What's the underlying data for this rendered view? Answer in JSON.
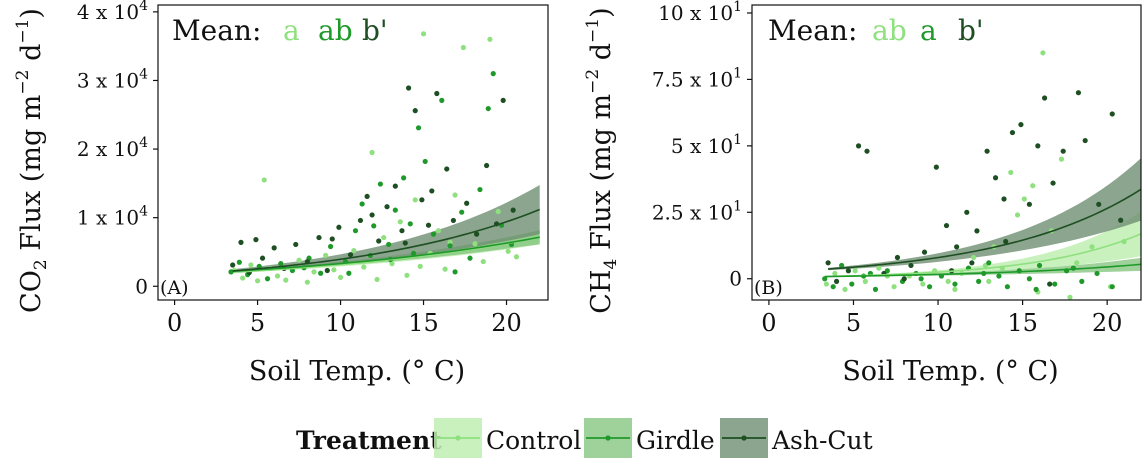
{
  "colors": {
    "control": "#8fe07f",
    "girdle": "#1f9a2a",
    "ashcut": "#1e4f23",
    "control_band": "#bfeeb3",
    "girdle_band": "#7fc27a",
    "ashcut_band": "#6f8f72"
  },
  "legend": {
    "title": "Treatment",
    "items": [
      "Control",
      "Girdle",
      "Ash-Cut"
    ]
  },
  "chart_data": [
    {
      "type": "scatter",
      "panel_tag": "(A)",
      "xlabel": "Soil Temp. (° C)",
      "ylabel_parts": [
        "CO",
        "2",
        " Flux  (mg  m",
        "−2",
        "  d",
        "−1",
        ")"
      ],
      "xlim": [
        -1,
        22.5
      ],
      "ylim": [
        -2000,
        41000
      ],
      "xticks": [
        0,
        5,
        10,
        15,
        20
      ],
      "yticks": [
        {
          "value": 0,
          "label": "0"
        },
        {
          "value": 10000,
          "label": "1 x 10",
          "exp": "4"
        },
        {
          "value": 20000,
          "label": "2 x 10",
          "exp": "4"
        },
        {
          "value": 30000,
          "label": "3 x 10",
          "exp": "4"
        },
        {
          "value": 40000,
          "label": "4 x 10",
          "exp": "4"
        }
      ],
      "mean_text": {
        "label": "Mean:",
        "letters": [
          "a",
          "ab",
          "b'"
        ]
      },
      "fits": [
        {
          "name": "Control",
          "a": 1600,
          "b": 0.068,
          "band": 0.15
        },
        {
          "name": "Girdle",
          "a": 1750,
          "b": 0.064,
          "band": 0.14
        },
        {
          "name": "Ash-Cut",
          "a": 1650,
          "b": 0.087,
          "band": 0.32
        }
      ],
      "series": [
        {
          "name": "Control",
          "points": [
            [
              3.6,
              2300
            ],
            [
              4.1,
              1200
            ],
            [
              4.6,
              3100
            ],
            [
              5.0,
              800
            ],
            [
              5.4,
              15500
            ],
            [
              5.8,
              2600
            ],
            [
              6.2,
              1500
            ],
            [
              7.5,
              3800
            ],
            [
              8.4,
              2100
            ],
            [
              9.1,
              4500
            ],
            [
              10.0,
              1300
            ],
            [
              10.8,
              5200
            ],
            [
              11.4,
              2800
            ],
            [
              11.9,
              19500
            ],
            [
              12.6,
              7100
            ],
            [
              13.1,
              3300
            ],
            [
              13.6,
              9400
            ],
            [
              14.0,
              1600
            ],
            [
              14.5,
              12600
            ],
            [
              15.0,
              36800
            ],
            [
              15.4,
              4800
            ],
            [
              15.9,
              8100
            ],
            [
              16.3,
              2500
            ],
            [
              16.9,
              13300
            ],
            [
              17.4,
              34800
            ],
            [
              18.1,
              6200
            ],
            [
              18.6,
              3600
            ],
            [
              19.0,
              36000
            ],
            [
              19.5,
              10900
            ],
            [
              20.1,
              5100
            ],
            [
              20.6,
              4300
            ],
            [
              12.2,
              1000
            ],
            [
              8.0,
              600
            ],
            [
              6.7,
              900
            ],
            [
              14.8,
              2900
            ],
            [
              9.6,
              2400
            ],
            [
              16.6,
              6400
            ]
          ]
        },
        {
          "name": "Girdle",
          "points": [
            [
              3.4,
              2100
            ],
            [
              3.9,
              3500
            ],
            [
              4.4,
              1700
            ],
            [
              5.1,
              2900
            ],
            [
              5.6,
              1100
            ],
            [
              6.4,
              3300
            ],
            [
              7.1,
              2300
            ],
            [
              8.1,
              4100
            ],
            [
              8.8,
              1900
            ],
            [
              9.4,
              5800
            ],
            [
              10.3,
              3600
            ],
            [
              10.9,
              8100
            ],
            [
              11.3,
              12000
            ],
            [
              11.8,
              4500
            ],
            [
              12.4,
              14900
            ],
            [
              12.9,
              6100
            ],
            [
              13.3,
              11100
            ],
            [
              13.8,
              15800
            ],
            [
              14.2,
              9100
            ],
            [
              14.7,
              23100
            ],
            [
              15.1,
              18200
            ],
            [
              15.6,
              7600
            ],
            [
              16.1,
              27100
            ],
            [
              16.6,
              5900
            ],
            [
              17.3,
              10800
            ],
            [
              17.8,
              4100
            ],
            [
              18.4,
              14100
            ],
            [
              18.9,
              25900
            ],
            [
              19.2,
              31000
            ],
            [
              19.7,
              8900
            ],
            [
              20.3,
              6100
            ],
            [
              10.5,
              1900
            ],
            [
              7.8,
              2700
            ],
            [
              13.0,
              3900
            ],
            [
              16.9,
              2100
            ],
            [
              12.0,
              8800
            ],
            [
              14.4,
              4800
            ]
          ]
        },
        {
          "name": "Ash-Cut",
          "points": [
            [
              3.5,
              3100
            ],
            [
              4.0,
              6400
            ],
            [
              4.5,
              2000
            ],
            [
              4.9,
              6800
            ],
            [
              5.3,
              4100
            ],
            [
              6.0,
              5600
            ],
            [
              6.6,
              2600
            ],
            [
              7.3,
              6100
            ],
            [
              8.0,
              3600
            ],
            [
              8.7,
              7100
            ],
            [
              9.2,
              2300
            ],
            [
              9.9,
              8600
            ],
            [
              10.6,
              4600
            ],
            [
              11.2,
              9600
            ],
            [
              11.6,
              13100
            ],
            [
              12.3,
              6600
            ],
            [
              12.8,
              11600
            ],
            [
              13.3,
              14600
            ],
            [
              13.7,
              8100
            ],
            [
              14.1,
              28900
            ],
            [
              14.5,
              25600
            ],
            [
              14.9,
              12600
            ],
            [
              15.3,
              8900
            ],
            [
              15.8,
              28100
            ],
            [
              16.4,
              17100
            ],
            [
              16.8,
              9600
            ],
            [
              17.6,
              12100
            ],
            [
              18.2,
              7600
            ],
            [
              18.8,
              17600
            ],
            [
              19.4,
              9100
            ],
            [
              19.8,
              27100
            ],
            [
              20.4,
              11100
            ],
            [
              13.9,
              6300
            ],
            [
              11.9,
              10400
            ],
            [
              15.5,
              13900
            ],
            [
              9.5,
              6900
            ]
          ]
        }
      ]
    },
    {
      "type": "scatter",
      "panel_tag": "(B)",
      "xlabel": "Soil Temp. (° C)",
      "ylabel_parts": [
        "CH",
        "4",
        " Flux  (mg  m",
        "−2",
        "  d",
        "−1",
        ")"
      ],
      "xlim": [
        -1,
        22
      ],
      "ylim": [
        -8,
        103
      ],
      "xticks": [
        0,
        5,
        10,
        15,
        20
      ],
      "yticks": [
        {
          "value": 0,
          "label": "0"
        },
        {
          "value": 25,
          "label": "2.5 x 10",
          "exp": "1"
        },
        {
          "value": 50,
          "label": "5 x 10",
          "exp": "1"
        },
        {
          "value": 75,
          "label": "7.5 x 10",
          "exp": "1"
        },
        {
          "value": 100,
          "label": "10 x 10",
          "exp": "1"
        }
      ],
      "mean_text": {
        "label": "Mean:",
        "letters": [
          "ab",
          "a",
          "b'"
        ]
      },
      "fits": [
        {
          "name": "Control",
          "a": 0.5,
          "b": 0.16,
          "band": 0.5
        },
        {
          "name": "Girdle",
          "a": 0.6,
          "b": 0.1,
          "band": 0.45
        },
        {
          "name": "Ash-Cut",
          "a": 2.4,
          "b": 0.12,
          "band": 0.35
        }
      ],
      "series": [
        {
          "name": "Control",
          "points": [
            [
              3.4,
              -2
            ],
            [
              3.9,
              2
            ],
            [
              4.5,
              -4
            ],
            [
              5.1,
              3
            ],
            [
              5.7,
              -1
            ],
            [
              6.5,
              4
            ],
            [
              7.4,
              -3
            ],
            [
              8.3,
              1
            ],
            [
              9.1,
              -2
            ],
            [
              9.8,
              3
            ],
            [
              10.6,
              -1
            ],
            [
              11.4,
              2
            ],
            [
              12.1,
              8
            ],
            [
              12.8,
              5
            ],
            [
              13.3,
              12
            ],
            [
              13.8,
              4
            ],
            [
              14.3,
              40
            ],
            [
              14.7,
              24
            ],
            [
              15.1,
              30
            ],
            [
              15.6,
              35
            ],
            [
              16.2,
              85
            ],
            [
              16.7,
              18
            ],
            [
              17.3,
              45
            ],
            [
              18.2,
              6
            ],
            [
              19.1,
              12
            ],
            [
              20.2,
              -3
            ],
            [
              21.0,
              14
            ],
            [
              7.0,
              1
            ],
            [
              11.0,
              -4
            ],
            [
              13.0,
              -1
            ],
            [
              15.9,
              -5
            ],
            [
              17.8,
              -7
            ]
          ]
        },
        {
          "name": "Girdle",
          "points": [
            [
              3.3,
              0
            ],
            [
              3.8,
              -3
            ],
            [
              4.3,
              5
            ],
            [
              4.9,
              -2
            ],
            [
              5.6,
              1
            ],
            [
              6.3,
              -4
            ],
            [
              7.0,
              3
            ],
            [
              7.9,
              -1
            ],
            [
              8.7,
              2
            ],
            [
              9.5,
              -3
            ],
            [
              10.2,
              1
            ],
            [
              11.0,
              -2
            ],
            [
              11.8,
              4
            ],
            [
              12.4,
              -1
            ],
            [
              13.0,
              6
            ],
            [
              13.6,
              1
            ],
            [
              14.1,
              -3
            ],
            [
              14.8,
              3
            ],
            [
              15.4,
              0
            ],
            [
              16.0,
              5
            ],
            [
              16.9,
              -2
            ],
            [
              17.6,
              3
            ],
            [
              18.5,
              -1
            ],
            [
              19.4,
              2
            ],
            [
              20.3,
              -3
            ],
            [
              9.0,
              0
            ],
            [
              12.7,
              2
            ],
            [
              15.8,
              -4
            ],
            [
              6.0,
              2
            ],
            [
              18.0,
              4
            ]
          ]
        },
        {
          "name": "Ash-Cut",
          "points": [
            [
              3.5,
              6
            ],
            [
              4.0,
              -1
            ],
            [
              4.7,
              3
            ],
            [
              5.3,
              50
            ],
            [
              5.8,
              48
            ],
            [
              6.8,
              2
            ],
            [
              7.6,
              8
            ],
            [
              8.4,
              5
            ],
            [
              9.2,
              10
            ],
            [
              9.9,
              42
            ],
            [
              10.5,
              20
            ],
            [
              11.1,
              12
            ],
            [
              11.7,
              25
            ],
            [
              12.3,
              18
            ],
            [
              12.9,
              48
            ],
            [
              13.4,
              38
            ],
            [
              13.9,
              30
            ],
            [
              14.4,
              55
            ],
            [
              14.9,
              58
            ],
            [
              15.4,
              28
            ],
            [
              15.9,
              50
            ],
            [
              16.3,
              68
            ],
            [
              16.8,
              36
            ],
            [
              17.4,
              48
            ],
            [
              18.3,
              70
            ],
            [
              18.7,
              52
            ],
            [
              19.5,
              28
            ],
            [
              20.3,
              62
            ],
            [
              20.8,
              22
            ],
            [
              8.0,
              0
            ],
            [
              12.0,
              6
            ],
            [
              14.0,
              14
            ],
            [
              16.6,
              -2
            ],
            [
              10.8,
              3
            ]
          ]
        }
      ]
    }
  ]
}
